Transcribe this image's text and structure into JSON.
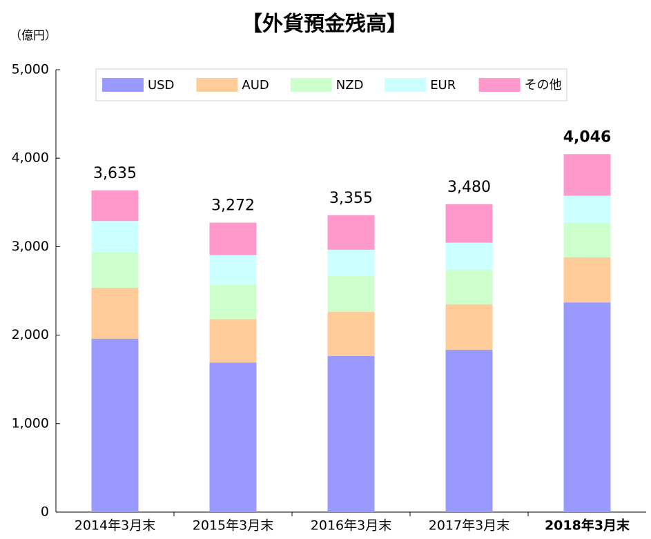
{
  "chart_data": {
    "type": "stacked-bar",
    "title": "【外貨預金残高】",
    "y_label": "（億円）",
    "categories": [
      "2014年3月末",
      "2015年3月末",
      "2016年3月末",
      "2017年3月末",
      "2018年3月末"
    ],
    "series": [
      {
        "name": "USD",
        "color": "#9999ff",
        "values": [
          1960,
          1690,
          1765,
          1835,
          2370
        ]
      },
      {
        "name": "AUD",
        "color": "#ffcc99",
        "values": [
          575,
          490,
          500,
          515,
          510
        ]
      },
      {
        "name": "NZD",
        "color": "#ccffcc",
        "values": [
          400,
          390,
          405,
          390,
          390
        ]
      },
      {
        "name": "EUR",
        "color": "#ccffff",
        "values": [
          355,
          335,
          295,
          305,
          305
        ]
      },
      {
        "name": "その他",
        "color": "#ff99cc",
        "values": [
          345,
          367,
          390,
          435,
          471
        ]
      }
    ],
    "totals": [
      3635,
      3272,
      3355,
      3480,
      4046
    ],
    "total_labels": [
      "3,635",
      "3,272",
      "3,355",
      "3,480",
      "4,046"
    ],
    "ylim": [
      0,
      5000
    ],
    "yticks": [
      0,
      {
        "value": 1000,
        "label": "1,000"
      },
      {
        "value": 2000,
        "label": "2,000"
      },
      {
        "value": 3000,
        "label": "3,000"
      },
      {
        "value": 4000,
        "label": "4,000"
      },
      {
        "value": 5000,
        "label": "5,000"
      }
    ],
    "legend": "top"
  }
}
